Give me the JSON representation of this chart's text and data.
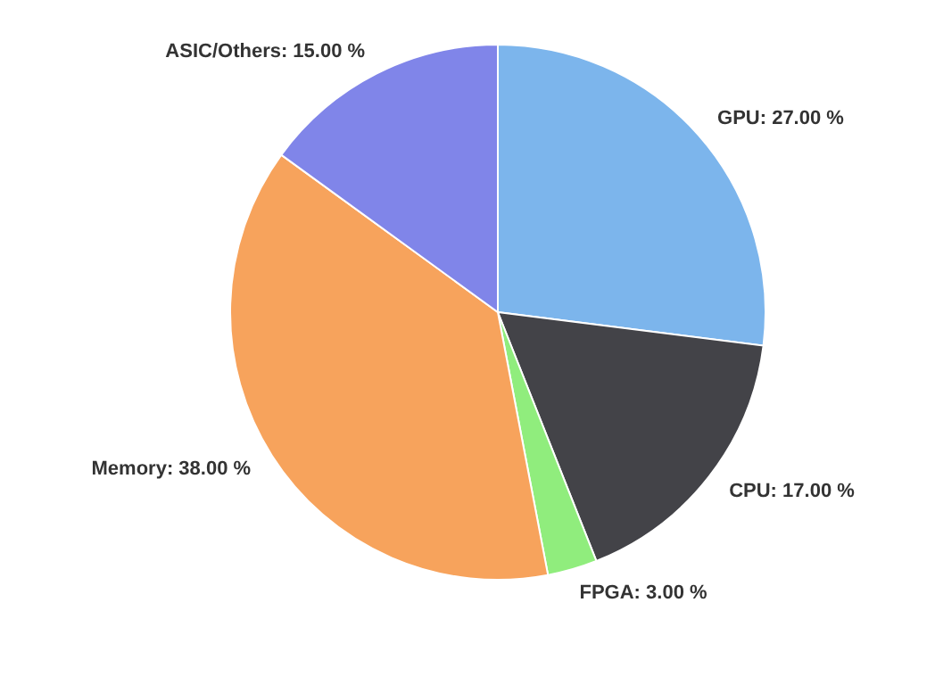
{
  "chart_data": {
    "type": "pie",
    "categories": [
      "GPU",
      "CPU",
      "FPGA",
      "Memory",
      "ASIC/Others"
    ],
    "values": [
      27,
      17,
      3,
      38,
      15
    ],
    "value_labels": [
      "27.00 %",
      "17.00 %",
      "3.00 %",
      "38.00 %",
      "15.00 %"
    ],
    "colors": [
      "#7cb5ec",
      "#434348",
      "#90ed7d",
      "#f7a35c",
      "#8085e9"
    ]
  }
}
